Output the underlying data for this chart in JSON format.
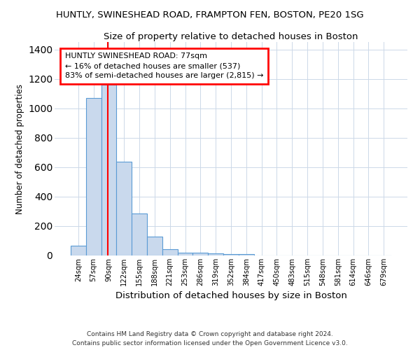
{
  "title": "HUNTLY, SWINESHEAD ROAD, FRAMPTON FEN, BOSTON, PE20 1SG",
  "subtitle": "Size of property relative to detached houses in Boston",
  "xlabel": "Distribution of detached houses by size in Boston",
  "ylabel": "Number of detached properties",
  "categories": [
    "24sqm",
    "57sqm",
    "90sqm",
    "122sqm",
    "155sqm",
    "188sqm",
    "221sqm",
    "253sqm",
    "286sqm",
    "319sqm",
    "352sqm",
    "384sqm",
    "417sqm",
    "450sqm",
    "483sqm",
    "515sqm",
    "548sqm",
    "581sqm",
    "614sqm",
    "646sqm",
    "679sqm"
  ],
  "values": [
    65,
    1070,
    1160,
    635,
    285,
    130,
    45,
    20,
    20,
    15,
    10,
    10,
    0,
    0,
    0,
    0,
    0,
    0,
    0,
    0,
    0
  ],
  "bar_color_face": "#c9d9ed",
  "bar_color_edge": "#5b9bd5",
  "ylim": [
    0,
    1450
  ],
  "yticks": [
    0,
    200,
    400,
    600,
    800,
    1000,
    1200,
    1400
  ],
  "red_line_x": 1.95,
  "annotation_title": "HUNTLY SWINESHEAD ROAD: 77sqm",
  "annotation_line1": "← 16% of detached houses are smaller (537)",
  "annotation_line2": "83% of semi-detached houses are larger (2,815) →",
  "footer1": "Contains HM Land Registry data © Crown copyright and database right 2024.",
  "footer2": "Contains public sector information licensed under the Open Government Licence v3.0.",
  "background_color": "#ffffff",
  "grid_color": "#ccd8e8"
}
